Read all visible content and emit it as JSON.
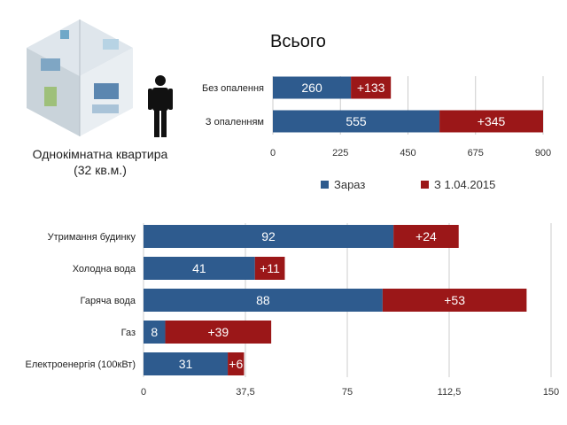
{
  "colors": {
    "now": "#2e5b8e",
    "increase": "#9b1718",
    "grid": "#cccccc"
  },
  "apartment": {
    "title_line1": "Однокімнатна квартира",
    "title_line2": "(32 кв.м.)",
    "illustration_icon": "apartment-floorplan-image",
    "person_icon": "person-icon"
  },
  "chart_data": [
    {
      "type": "bar",
      "stacked": true,
      "orientation": "horizontal",
      "title": "Всього",
      "categories": [
        "Без опалення",
        "З опаленням"
      ],
      "series": [
        {
          "name": "Зараз",
          "values": [
            260,
            555
          ],
          "labels": [
            "260",
            "555"
          ]
        },
        {
          "name": "З 1.04.2015",
          "values": [
            133,
            345
          ],
          "labels": [
            "+133",
            "+345"
          ]
        }
      ],
      "xlim": [
        0,
        900
      ],
      "xticks": [
        0,
        225,
        450,
        675,
        900
      ],
      "xtick_labels": [
        "0",
        "225",
        "450",
        "675",
        "900"
      ],
      "grid": true,
      "legend": {
        "position": "bottom",
        "entries": [
          "Зараз",
          "З 1.04.2015"
        ]
      }
    },
    {
      "type": "bar",
      "stacked": true,
      "orientation": "horizontal",
      "title": "",
      "categories": [
        "Утримання будинку",
        "Холодна вода",
        "Гаряча вода",
        "Газ",
        "Електроенергія (100кВт)"
      ],
      "series": [
        {
          "name": "Зараз",
          "values": [
            92,
            41,
            88,
            8,
            31
          ],
          "labels": [
            "92",
            "41",
            "88",
            "8",
            "31"
          ]
        },
        {
          "name": "З 1.04.2015",
          "values": [
            24,
            11,
            53,
            39,
            6
          ],
          "labels": [
            "+24",
            "+11",
            "+53",
            "+39",
            "+6"
          ]
        }
      ],
      "xlim": [
        0,
        150
      ],
      "xticks": [
        0,
        37.5,
        75,
        112.5,
        150
      ],
      "xtick_labels": [
        "0",
        "37,5",
        "75",
        "112,5",
        "150"
      ],
      "grid": true
    }
  ]
}
